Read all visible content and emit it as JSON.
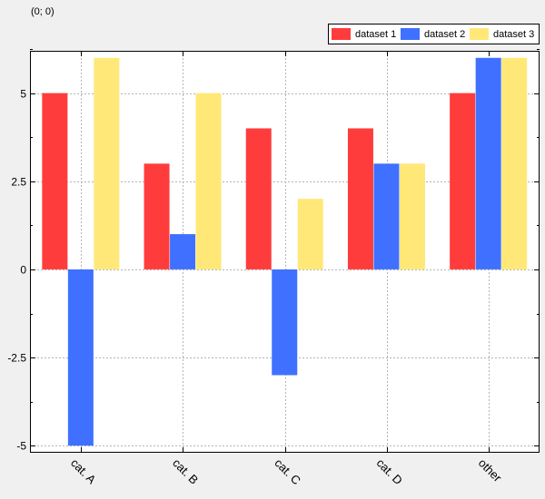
{
  "coordinate_readout": "(0; 0)",
  "chart_data": {
    "type": "bar",
    "categories": [
      "cat. A",
      "cat. B",
      "cat. C",
      "cat. D",
      "other"
    ],
    "series": [
      {
        "name": "dataset 1",
        "color": "#ff3c3c",
        "values": [
          5,
          3,
          4,
          4,
          5
        ]
      },
      {
        "name": "dataset 2",
        "color": "#4070ff",
        "values": [
          -5,
          1,
          -3,
          3,
          6
        ]
      },
      {
        "name": "dataset 3",
        "color": "#ffe878",
        "values": [
          6,
          5,
          2,
          3,
          6
        ]
      }
    ],
    "ylim": [
      -5.2,
      6.2
    ],
    "yticks": [
      {
        "value": 5,
        "label": "5"
      },
      {
        "value": 2.5,
        "label": "2.5"
      },
      {
        "value": 0,
        "label": "0"
      },
      {
        "value": -2.5,
        "label": "-2.5"
      },
      {
        "value": -5,
        "label": "-5"
      }
    ],
    "ytick_minor": [
      6.25,
      3.75,
      1.25,
      -1.25,
      -3.75
    ],
    "grid": true,
    "legend_position": "top-right"
  }
}
